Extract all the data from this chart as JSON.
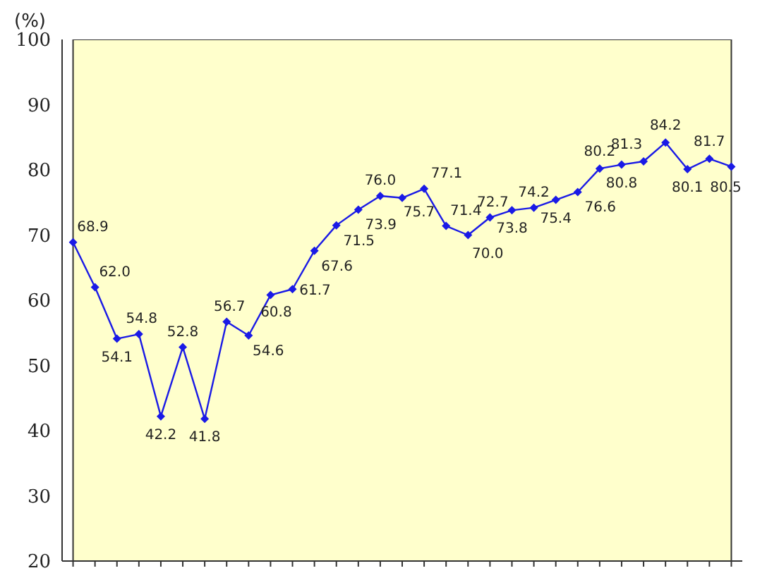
{
  "chart_data": {
    "type": "line",
    "ylabel": "(%)",
    "categories": [
      null,
      null,
      null,
      null,
      null,
      null,
      null,
      null,
      null,
      null,
      null,
      null,
      null,
      null,
      null,
      null,
      null,
      null,
      null,
      null,
      null,
      null,
      null,
      null,
      null,
      null,
      null,
      null,
      null,
      null,
      null
    ],
    "series": [
      {
        "color": "#1a1ae6",
        "values": [
          68.9,
          62.0,
          54.1,
          54.8,
          42.2,
          52.8,
          41.8,
          56.7,
          54.6,
          60.8,
          61.7,
          67.6,
          71.5,
          73.9,
          76.0,
          75.7,
          77.1,
          71.4,
          70.0,
          72.7,
          73.8,
          74.2,
          75.4,
          76.6,
          80.2,
          80.8,
          81.3,
          84.2,
          80.1,
          81.7,
          80.5
        ]
      }
    ],
    "value_labels": [
      "68.9",
      "62.0",
      "54.1",
      "54.8",
      "42.2",
      "52.8",
      "41.8",
      "56.7",
      "54.6",
      "60.8",
      "61.7",
      "67.6",
      "71.5",
      "73.9",
      "76.0",
      "75.7",
      "77.1",
      "71.4",
      "70.0",
      "72.7",
      "73.8",
      "74.2",
      "75.4",
      "76.6",
      "80.2",
      "80.8",
      "81.3",
      "84.2",
      "80.1",
      "81.7",
      "80.5"
    ],
    "ylim": [
      20,
      100
    ],
    "yticks": [
      20,
      30,
      40,
      50,
      60,
      70,
      80,
      90,
      100
    ],
    "tick_labels": "y",
    "grid": false,
    "legend": false,
    "marker": "diamond",
    "line_style": "solid"
  }
}
